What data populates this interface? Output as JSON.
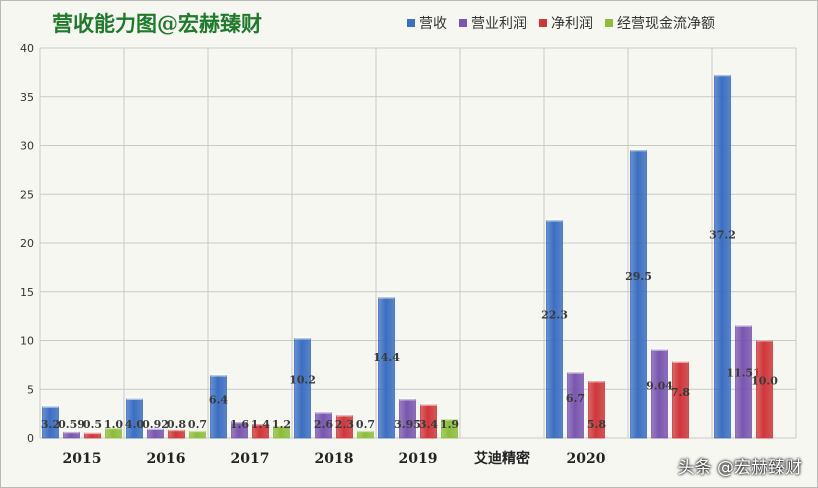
{
  "chart_data": {
    "type": "bar",
    "title": "营收能力图@宏赫臻财",
    "categories": [
      "2015",
      "2016",
      "2017",
      "2018",
      "2019",
      "艾迪精密",
      "2020",
      "",
      ""
    ],
    "series": [
      {
        "name": "营收",
        "values": [
          3.2,
          4.0,
          6.4,
          10.2,
          14.4,
          null,
          22.3,
          29.5,
          37.2
        ],
        "labels": [
          "3.2",
          "4.0",
          "6.4",
          "10.2",
          "14.4",
          "",
          "22.3",
          "29.5",
          "37.2"
        ]
      },
      {
        "name": "营业利润",
        "values": [
          0.59,
          0.92,
          1.6,
          2.6,
          3.95,
          null,
          6.7,
          9.04,
          11.51
        ],
        "labels": [
          "0.59",
          "0.92",
          "1.6",
          "2.6",
          "3.95",
          "",
          "6.7",
          "9.04",
          "11.51"
        ]
      },
      {
        "name": "净利润",
        "values": [
          0.5,
          0.8,
          1.4,
          2.3,
          3.4,
          null,
          5.8,
          7.8,
          10.0
        ],
        "labels": [
          "0.5",
          "0.8",
          "1.4",
          "2.3",
          "3.4",
          "",
          "5.8",
          "7.8",
          "10.0"
        ]
      },
      {
        "name": "经营现金流净额",
        "values": [
          1.0,
          0.7,
          1.2,
          0.7,
          1.9,
          null,
          null,
          null,
          null
        ],
        "labels": [
          "1.0",
          "0.7",
          "1.2",
          "0.7",
          "1.9",
          "",
          "",
          "",
          ""
        ]
      }
    ],
    "xlabel": "",
    "ylabel": "",
    "ylim": [
      0,
      40
    ],
    "yticks": [
      "0",
      "5",
      "10",
      "15",
      "20",
      "25",
      "30",
      "35",
      "40"
    ],
    "grid": true,
    "legend_position": "top-right"
  },
  "colors": {
    "series": [
      "#3c6fc2",
      "#7a56b0",
      "#d0373a",
      "#8dbd3b"
    ],
    "title": "#1f7a2b",
    "grid": "#c8c8c8",
    "background": "#f7f7f2"
  },
  "watermark": "头条 @宏赫臻财"
}
